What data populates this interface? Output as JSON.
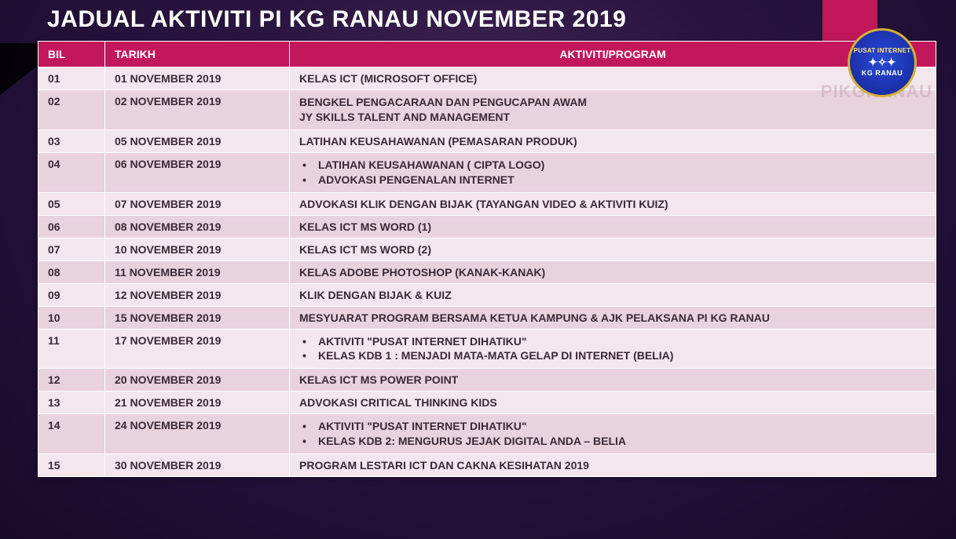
{
  "title": "JADUAL AKTIVITI PI KG RANAU NOVEMBER 2019",
  "watermark": "PIKGRANAU",
  "logo": {
    "top": "PUSAT INTERNET",
    "mid": "✦✧✦",
    "bot": "KG RANAU"
  },
  "columns": [
    "BIL",
    "TARIKH",
    "AKTIVITI/PROGRAM"
  ],
  "rows": [
    {
      "bil": "01",
      "tarikh": "01 NOVEMBER 2019",
      "activity": [
        "KELAS ICT (MICROSOFT OFFICE)"
      ],
      "bulleted": false
    },
    {
      "bil": "02",
      "tarikh": "02 NOVEMBER 2019",
      "activity": [
        "BENGKEL PENGACARAAN DAN PENGUCAPAN AWAM",
        "JY SKILLS TALENT AND MANAGEMENT"
      ],
      "bulleted": false
    },
    {
      "bil": "03",
      "tarikh": "05 NOVEMBER 2019",
      "activity": [
        "LATIHAN KEUSAHAWANAN (PEMASARAN PRODUK)"
      ],
      "bulleted": false
    },
    {
      "bil": "04",
      "tarikh": "06 NOVEMBER 2019",
      "activity": [
        "LATIHAN KEUSAHAWANAN ( CIPTA LOGO)",
        "ADVOKASI PENGENALAN INTERNET"
      ],
      "bulleted": true
    },
    {
      "bil": "05",
      "tarikh": "07 NOVEMBER 2019",
      "activity": [
        "ADVOKASI KLIK DENGAN BIJAK (TAYANGAN VIDEO & AKTIVITI KUIZ)"
      ],
      "bulleted": false
    },
    {
      "bil": "06",
      "tarikh": "08 NOVEMBER 2019",
      "activity": [
        "KELAS ICT MS WORD (1)"
      ],
      "bulleted": false
    },
    {
      "bil": "07",
      "tarikh": "10 NOVEMBER 2019",
      "activity": [
        "KELAS ICT MS WORD (2)"
      ],
      "bulleted": false
    },
    {
      "bil": "08",
      "tarikh": "11 NOVEMBER 2019",
      "activity": [
        "KELAS ADOBE PHOTOSHOP (KANAK-KANAK)"
      ],
      "bulleted": false
    },
    {
      "bil": "09",
      "tarikh": "12 NOVEMBER 2019",
      "activity": [
        "KLIK DENGAN BIJAK & KUIZ"
      ],
      "bulleted": false
    },
    {
      "bil": "10",
      "tarikh": "15 NOVEMBER 2019",
      "activity": [
        "MESYUARAT PROGRAM BERSAMA KETUA KAMPUNG & AJK PELAKSANA PI KG RANAU"
      ],
      "bulleted": false
    },
    {
      "bil": "11",
      "tarikh": "17 NOVEMBER 2019",
      "activity": [
        "AKTIVITI \"PUSAT INTERNET DIHATIKU\"",
        "KELAS KDB 1 : MENJADI MATA-MATA GELAP DI INTERNET (BELIA)"
      ],
      "bulleted": true
    },
    {
      "bil": "12",
      "tarikh": "20 NOVEMBER 2019",
      "activity": [
        "KELAS ICT MS POWER POINT"
      ],
      "bulleted": false
    },
    {
      "bil": "13",
      "tarikh": "21 NOVEMBER 2019",
      "activity": [
        "ADVOKASI CRITICAL THINKING KIDS"
      ],
      "bulleted": false
    },
    {
      "bil": "14",
      "tarikh": "24 NOVEMBER 2019",
      "activity": [
        "AKTIVITI \"PUSAT INTERNET DIHATIKU\"",
        "KELAS KDB 2: MENGURUS JEJAK DIGITAL ANDA – BELIA"
      ],
      "bulleted": true
    },
    {
      "bil": "15",
      "tarikh": "30 NOVEMBER 2019",
      "activity": [
        "PROGRAM LESTARI ICT DAN CAKNA KESIHATAN 2019"
      ],
      "bulleted": false
    }
  ],
  "colors": {
    "header_bg": "#c2185b",
    "row_odd": "#f3e6ec",
    "row_even": "#e8d2dc",
    "bg_center": "#4a2a5a",
    "bg_edge": "#180a2a"
  }
}
